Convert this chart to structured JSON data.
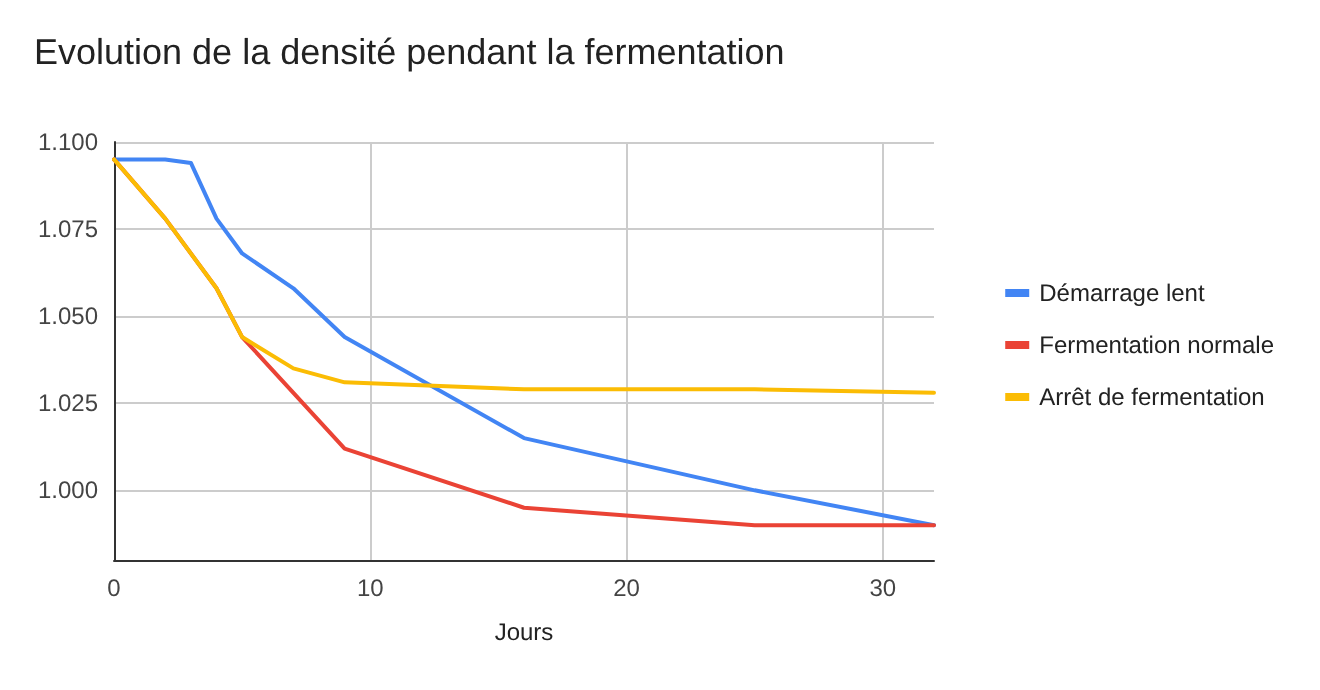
{
  "chart_data": {
    "type": "line",
    "title": "Evolution de la densité pendant la fermentation",
    "xlabel": "Jours",
    "xlim": [
      0,
      32
    ],
    "xticks": [
      0,
      10,
      20,
      30
    ],
    "ylim": [
      0.98,
      1.1
    ],
    "yticks": [
      {
        "value": 1.0,
        "label": "1.000"
      },
      {
        "value": 1.025,
        "label": "1.025"
      },
      {
        "value": 1.05,
        "label": "1.050"
      },
      {
        "value": 1.075,
        "label": "1.075"
      },
      {
        "value": 1.1,
        "label": "1.100"
      }
    ],
    "grid": true,
    "legend": "right",
    "marker": "none",
    "line_style": "solid",
    "series": [
      {
        "name": "Démarrage lent",
        "color": "#4285f4",
        "x": [
          0,
          2,
          3,
          4,
          5,
          7,
          9,
          16,
          25,
          32
        ],
        "values": [
          1.095,
          1.095,
          1.094,
          1.078,
          1.068,
          1.058,
          1.044,
          1.015,
          1.0,
          0.99
        ]
      },
      {
        "name": "Fermentation normale",
        "color": "#ea4335",
        "x": [
          0,
          2,
          4,
          5,
          9,
          16,
          25,
          32
        ],
        "values": [
          1.095,
          1.078,
          1.058,
          1.044,
          1.012,
          0.995,
          0.99,
          0.99
        ]
      },
      {
        "name": "Arrêt de fermentation",
        "color": "#fbbc04",
        "x": [
          0,
          2,
          4,
          5,
          7,
          9,
          16,
          25,
          32
        ],
        "values": [
          1.095,
          1.078,
          1.058,
          1.044,
          1.035,
          1.031,
          1.029,
          1.029,
          1.028
        ]
      }
    ]
  }
}
